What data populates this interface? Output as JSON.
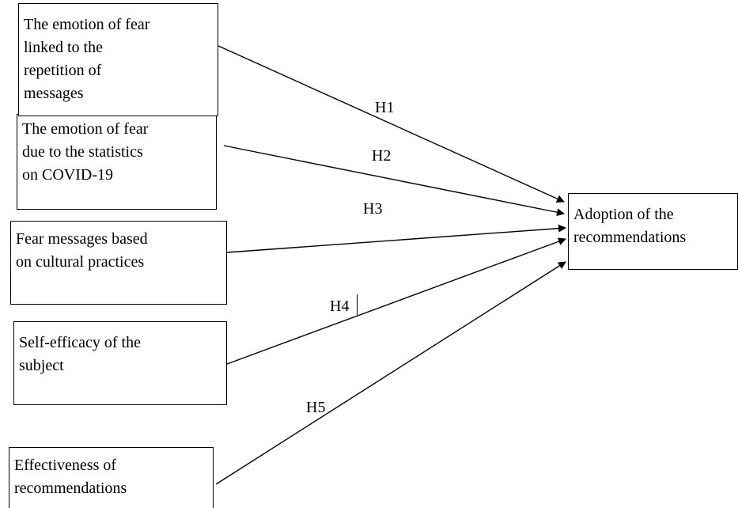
{
  "boxes": {
    "b1": [
      "The emotion of fear",
      "linked to the",
      "repetition of",
      "messages"
    ],
    "b2": [
      "The emotion of fear",
      "due to the statistics",
      "on COVID-19"
    ],
    "b3": [
      "Fear messages based",
      "on cultural practices"
    ],
    "b4": [
      "Self-efficacy of the",
      "subject"
    ],
    "b5": [
      "Effectiveness of",
      "recommendations"
    ],
    "target": [
      "Adoption of the",
      "recommendations"
    ]
  },
  "hypotheses": [
    "H1",
    "H2",
    "H3",
    "H4",
    "H5"
  ]
}
